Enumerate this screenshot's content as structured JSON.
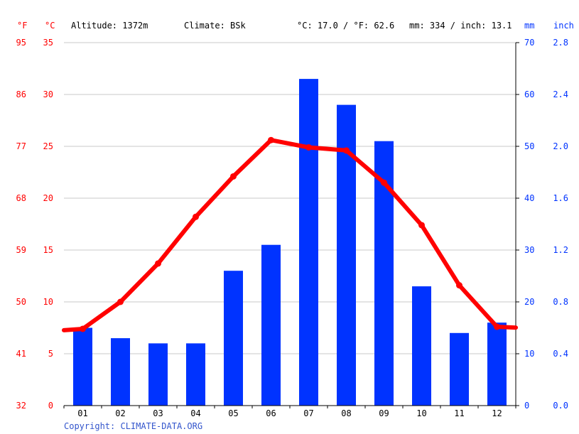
{
  "header": {
    "unit_f": "°F",
    "unit_c": "°C",
    "altitude": "Altitude: 1372m",
    "climate": "Climate: BSk",
    "avg_temp": "°C: 17.0 / °F: 62.6",
    "precip_total": "mm: 334 / inch: 13.1",
    "unit_mm": "mm",
    "unit_inch": "inch"
  },
  "copyright": "Copyright: CLIMATE-DATA.ORG",
  "colors": {
    "temp": "#ff0000",
    "precip": "#0033ff",
    "grid": "#c8c8c8",
    "axis": "#000000"
  },
  "chart_data": {
    "type": "bar",
    "categories": [
      "01",
      "02",
      "03",
      "04",
      "05",
      "06",
      "07",
      "08",
      "09",
      "10",
      "11",
      "12"
    ],
    "series": [
      {
        "axis": "right",
        "type": "bar",
        "color": "#0033ff",
        "values": [
          15,
          13,
          12,
          12,
          26,
          31,
          63,
          58,
          51,
          23,
          14,
          16
        ]
      },
      {
        "axis": "left",
        "type": "line",
        "color": "#ff0000",
        "values": [
          7.4,
          10.0,
          13.7,
          18.2,
          22.1,
          25.6,
          24.9,
          24.6,
          21.5,
          17.4,
          11.6,
          7.6
        ]
      }
    ],
    "ylim_c": [
      0,
      35
    ],
    "yticks_c": [
      "0",
      "5",
      "10",
      "15",
      "20",
      "25",
      "30",
      "35"
    ],
    "yticks_f": [
      "32",
      "41",
      "50",
      "59",
      "68",
      "77",
      "86",
      "95"
    ],
    "ylim_mm": [
      0,
      70
    ],
    "yticks_mm": [
      "0",
      "10",
      "20",
      "30",
      "40",
      "50",
      "60",
      "70"
    ],
    "yticks_inch": [
      "0.0",
      "0.4",
      "0.8",
      "1.2",
      "1.6",
      "2.0",
      "2.4",
      "2.8"
    ],
    "grid": true
  }
}
